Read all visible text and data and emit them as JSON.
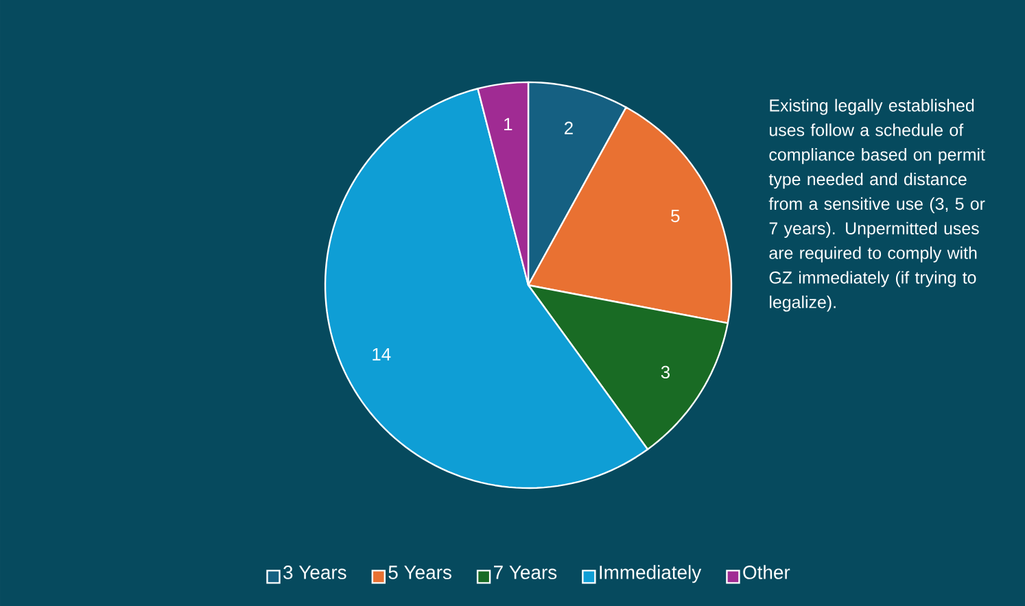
{
  "chart_data": {
    "type": "pie",
    "categories": [
      "3 Years",
      "5 Years",
      "7 Years",
      "Immediately",
      "Other"
    ],
    "values": [
      2,
      5,
      3,
      14,
      1
    ],
    "colors": [
      "#156082",
      "#e97132",
      "#196b24",
      "#0f9ed5",
      "#a02b93"
    ],
    "data_labels": true,
    "legend": "bottom",
    "annotations": [
      "Existing legally established uses follow a schedule of compliance based on permit type needed and distance from a sensitive use (3, 5 or 7 years). Unpermitted uses are required to comply with GZ immediately (if trying to legalize)."
    ]
  }
}
